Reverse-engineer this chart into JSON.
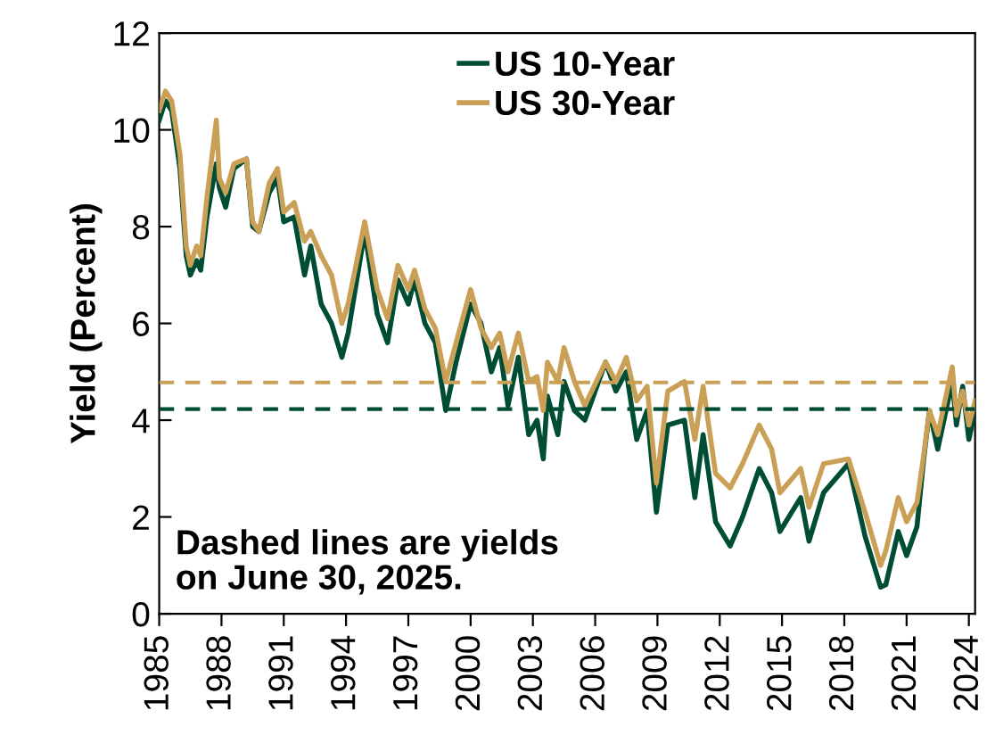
{
  "chart_data": {
    "type": "line",
    "ylabel": "Yield (Percent)",
    "xlim": [
      1985,
      2024.3
    ],
    "xticks": [
      1985,
      1988,
      1991,
      1994,
      1997,
      2000,
      2003,
      2006,
      2009,
      2012,
      2015,
      2018,
      2021,
      2024
    ],
    "ylim": [
      0,
      12
    ],
    "yticks": [
      0,
      2,
      4,
      6,
      8,
      10,
      12
    ],
    "grid": false,
    "legend": "top",
    "line_style": "solid",
    "marker": "none",
    "series": [
      {
        "name": "US 10-Year",
        "color": "#004d35",
        "x": [
          1985.0,
          1985.3,
          1985.6,
          1986.0,
          1986.3,
          1986.5,
          1986.8,
          1987.0,
          1987.3,
          1987.75,
          1987.9,
          1988.2,
          1988.6,
          1989.2,
          1989.5,
          1989.8,
          1990.3,
          1990.7,
          1991.0,
          1991.5,
          1992.0,
          1992.3,
          1992.8,
          1993.3,
          1993.8,
          1994.1,
          1994.9,
          1995.5,
          1996.0,
          1996.5,
          1997.0,
          1997.3,
          1997.8,
          1998.3,
          1998.8,
          1999.3,
          2000.0,
          2000.5,
          2001.0,
          2001.4,
          2001.8,
          2002.3,
          2002.8,
          2003.2,
          2003.5,
          2003.7,
          2004.2,
          2004.5,
          2005.0,
          2005.5,
          2006.5,
          2007.0,
          2007.5,
          2008.0,
          2008.5,
          2008.95,
          2009.5,
          2010.3,
          2010.8,
          2011.2,
          2011.8,
          2012.5,
          2013.1,
          2013.9,
          2014.5,
          2014.9,
          2015.9,
          2016.3,
          2017.0,
          2018.2,
          2019.0,
          2019.75,
          2020.0,
          2020.6,
          2021.0,
          2021.5,
          2021.8,
          2022.1,
          2022.5,
          2023.2,
          2023.4,
          2023.7,
          2024.0,
          2024.3
        ],
        "values": [
          10.2,
          10.6,
          10.4,
          9.2,
          7.4,
          7.0,
          7.3,
          7.1,
          8.2,
          9.3,
          8.8,
          8.4,
          9.2,
          9.4,
          8.0,
          7.9,
          8.7,
          9.0,
          8.1,
          8.2,
          7.0,
          7.6,
          6.4,
          6.0,
          5.3,
          5.8,
          7.9,
          6.2,
          5.6,
          6.9,
          6.4,
          6.9,
          6.0,
          5.6,
          4.2,
          5.2,
          6.4,
          6.0,
          5.0,
          5.5,
          4.3,
          5.3,
          3.7,
          4.0,
          3.2,
          4.5,
          3.7,
          4.8,
          4.2,
          4.0,
          5.2,
          4.6,
          5.0,
          3.6,
          4.2,
          2.1,
          3.9,
          4.0,
          2.4,
          3.7,
          1.9,
          1.4,
          2.0,
          3.0,
          2.5,
          1.7,
          2.4,
          1.5,
          2.5,
          3.1,
          1.6,
          0.55,
          0.6,
          1.7,
          1.2,
          1.8,
          3.1,
          4.2,
          3.4,
          4.8,
          3.9,
          4.7,
          3.6,
          4.2
        ]
      },
      {
        "name": "US 30-Year",
        "color": "#c9a055",
        "x": [
          1985.0,
          1985.3,
          1985.6,
          1986.0,
          1986.3,
          1986.5,
          1986.8,
          1987.0,
          1987.3,
          1987.75,
          1987.9,
          1988.2,
          1988.6,
          1989.2,
          1989.5,
          1989.8,
          1990.3,
          1990.7,
          1991.0,
          1991.5,
          1992.0,
          1992.3,
          1992.8,
          1993.3,
          1993.8,
          1994.1,
          1994.9,
          1995.5,
          1996.0,
          1996.5,
          1997.0,
          1997.3,
          1997.8,
          1998.3,
          1998.8,
          1999.3,
          2000.0,
          2000.5,
          2001.0,
          2001.4,
          2001.8,
          2002.3,
          2002.8,
          2003.2,
          2003.5,
          2003.7,
          2004.2,
          2004.5,
          2005.0,
          2005.5,
          2006.5,
          2007.0,
          2007.5,
          2008.0,
          2008.5,
          2008.95,
          2009.5,
          2010.3,
          2010.8,
          2011.2,
          2011.8,
          2012.5,
          2013.1,
          2013.9,
          2014.5,
          2014.9,
          2015.9,
          2016.3,
          2017.0,
          2018.2,
          2019.0,
          2019.75,
          2020.0,
          2020.6,
          2021.0,
          2021.5,
          2021.8,
          2022.1,
          2022.5,
          2023.2,
          2023.4,
          2023.7,
          2024.0,
          2024.3
        ],
        "values": [
          10.4,
          10.8,
          10.6,
          9.5,
          7.6,
          7.2,
          7.6,
          7.4,
          8.6,
          10.2,
          9.0,
          8.7,
          9.3,
          9.4,
          8.1,
          7.9,
          8.9,
          9.2,
          8.3,
          8.5,
          7.7,
          7.9,
          7.4,
          7.0,
          6.0,
          6.4,
          8.1,
          6.7,
          6.1,
          7.2,
          6.7,
          7.1,
          6.3,
          5.9,
          4.8,
          5.6,
          6.7,
          5.9,
          5.5,
          5.8,
          5.0,
          5.8,
          4.8,
          4.9,
          4.2,
          5.2,
          4.8,
          5.5,
          4.8,
          4.3,
          5.2,
          4.8,
          5.3,
          4.4,
          4.7,
          2.7,
          4.6,
          4.8,
          3.6,
          4.7,
          2.9,
          2.6,
          3.1,
          3.9,
          3.4,
          2.5,
          3.0,
          2.2,
          3.1,
          3.2,
          2.1,
          1.0,
          1.3,
          2.4,
          1.9,
          2.3,
          3.2,
          4.2,
          3.7,
          5.1,
          4.1,
          4.6,
          3.9,
          4.4
        ]
      }
    ],
    "ref_lines": [
      {
        "axis": "y",
        "value": 4.78,
        "color": "#c9a055",
        "line_style": "dashed"
      },
      {
        "axis": "y",
        "value": 4.23,
        "color": "#004d35",
        "line_style": "dashed"
      }
    ],
    "annotations": [
      "Dashed lines are yields\non June 30, 2025."
    ]
  }
}
